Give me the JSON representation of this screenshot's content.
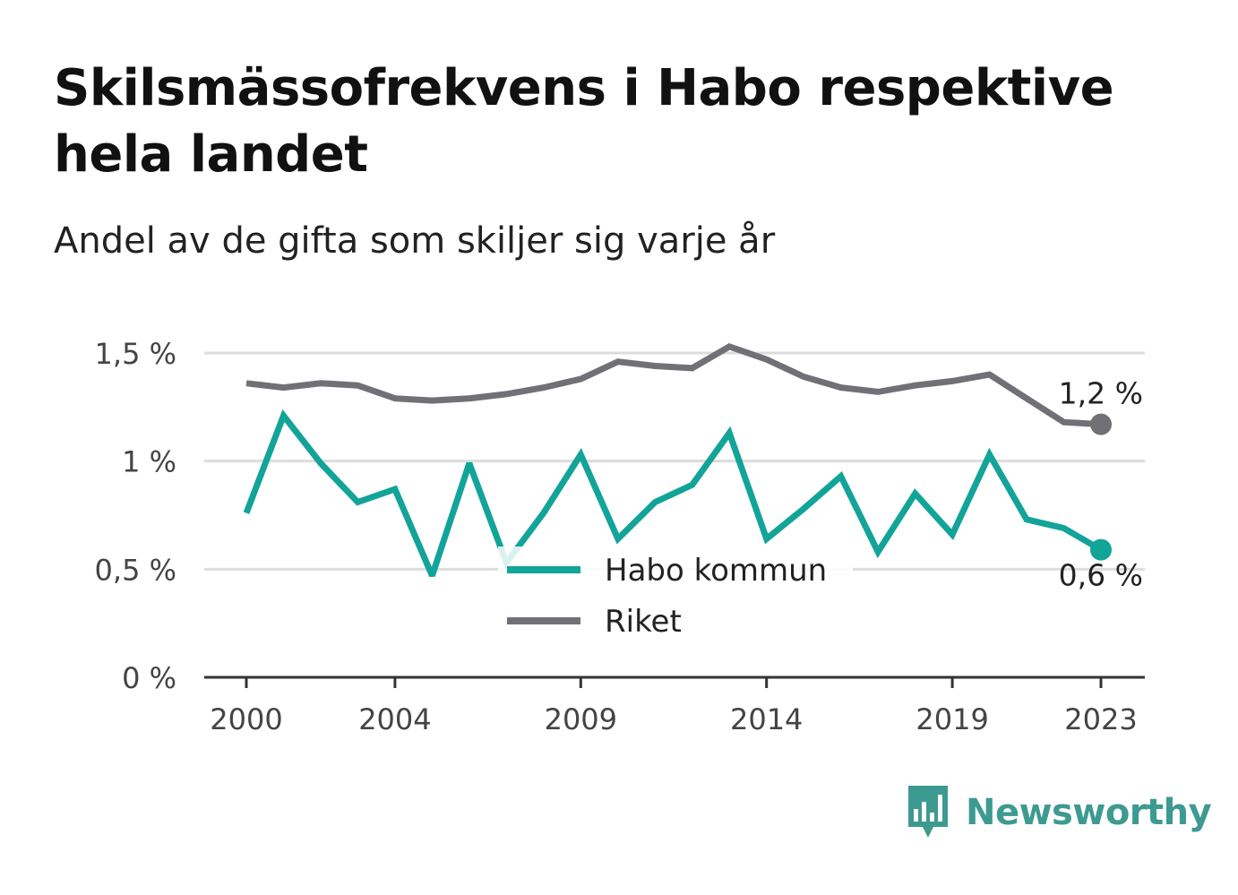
{
  "title": "Skilsmässofrekvens i Habo respektive hela landet",
  "subtitle": "Andel av de gifta som skiljer sig varje år",
  "brand": {
    "name": "Newsworthy",
    "icon": "bar-chart-speech-bubble-icon",
    "color": "#3d9a91"
  },
  "chart_data": {
    "type": "line",
    "x": [
      2000,
      2001,
      2002,
      2003,
      2004,
      2005,
      2006,
      2007,
      2008,
      2009,
      2010,
      2011,
      2012,
      2013,
      2014,
      2015,
      2016,
      2017,
      2018,
      2019,
      2020,
      2021,
      2022,
      2023
    ],
    "x_ticks": [
      "2000",
      "2004",
      "2009",
      "2014",
      "2019",
      "2023"
    ],
    "y_ticks": [
      "0 %",
      "0,5 %",
      "1 %",
      "1,5 %"
    ],
    "ylim": [
      0,
      1.5
    ],
    "grid": true,
    "series": [
      {
        "name": "Habo kommun",
        "color": "#12a499",
        "values": [
          0.76,
          1.21,
          0.99,
          0.81,
          0.87,
          0.47,
          0.99,
          0.53,
          0.76,
          1.03,
          0.64,
          0.81,
          0.89,
          1.13,
          0.64,
          0.78,
          0.93,
          0.58,
          0.85,
          0.66,
          1.03,
          0.73,
          0.69,
          0.59
        ],
        "end_label": "0,6 %"
      },
      {
        "name": "Riket",
        "color": "#727077",
        "values": [
          1.36,
          1.34,
          1.36,
          1.35,
          1.29,
          1.28,
          1.29,
          1.31,
          1.34,
          1.38,
          1.46,
          1.44,
          1.43,
          1.53,
          1.47,
          1.39,
          1.34,
          1.32,
          1.35,
          1.37,
          1.4,
          1.29,
          1.18,
          1.17
        ],
        "end_label": "1,2 %"
      }
    ],
    "legend": {
      "position": "bottom-center",
      "items": [
        "Habo kommun",
        "Riket"
      ]
    }
  }
}
